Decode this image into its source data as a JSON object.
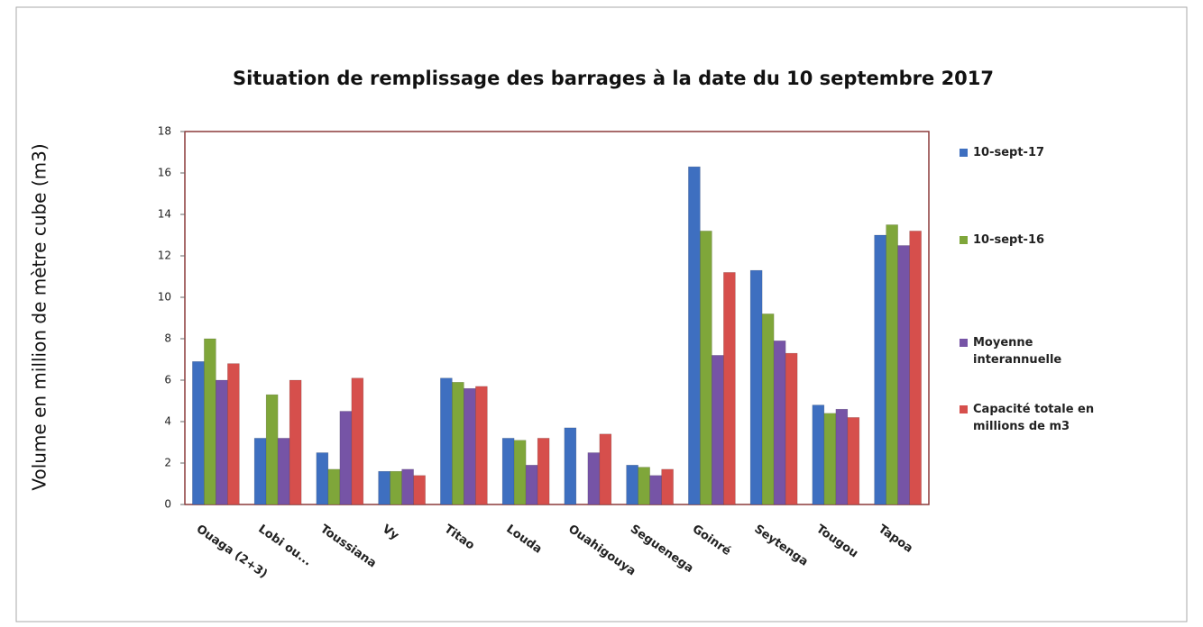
{
  "chart_data": {
    "type": "bar",
    "title": "Situation de remplissage des barrages à la date du 10 septembre 2017",
    "y_label": "Volume en million de mètre cube (m3)",
    "categories": [
      "Ouaga (2+3)",
      "Lobi ou...",
      "Toussiana",
      "Vy",
      "Titao",
      "Louda",
      "Ouahigouya",
      "Seguenega",
      "Goinré",
      "Seytenga",
      "Tougou",
      "Tapoa"
    ],
    "series": [
      {
        "name": "10-sept-17",
        "color": "#3e6fc0",
        "values": [
          6.9,
          3.2,
          2.5,
          1.6,
          6.1,
          3.2,
          3.7,
          1.9,
          16.3,
          11.3,
          4.8,
          13.0
        ]
      },
      {
        "name": "10-sept-16",
        "color": "#7fa63a",
        "values": [
          8.0,
          5.3,
          1.7,
          1.6,
          5.9,
          3.1,
          0,
          1.8,
          13.2,
          9.2,
          4.4,
          13.5
        ]
      },
      {
        "name": "Moyenne interannuelle",
        "color": "#7654a6",
        "values": [
          6.0,
          3.2,
          4.5,
          1.7,
          5.6,
          1.9,
          2.5,
          1.4,
          7.2,
          7.9,
          4.6,
          12.5
        ]
      },
      {
        "name": "Capacité totale en millions de m3",
        "color": "#d64f4c",
        "values": [
          6.8,
          6.0,
          6.1,
          1.4,
          5.7,
          3.2,
          3.4,
          1.7,
          11.2,
          7.3,
          4.2,
          13.2
        ]
      }
    ],
    "ylim": [
      0,
      18
    ],
    "yticks": [
      0,
      2,
      4,
      6,
      8,
      10,
      12,
      14,
      16,
      18
    ],
    "legend": "right"
  }
}
